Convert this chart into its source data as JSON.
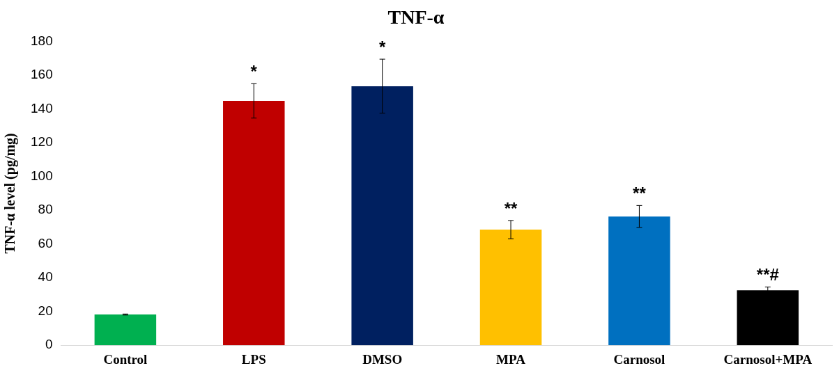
{
  "chart_data": {
    "type": "bar",
    "title": "TNF-α",
    "ylabel": "TNF-α level (pg/mg)",
    "categories": [
      "Control",
      "LPS",
      "DMSO",
      "MPA",
      "Carnosol",
      "Carnosol+MPA"
    ],
    "values": [
      18.2,
      144.8,
      153.5,
      68.5,
      76.3,
      32.5
    ],
    "colors": [
      "#00b050",
      "#c00000",
      "#002060",
      "#ffc000",
      "#0070c0",
      "#000000"
    ],
    "errors": [
      0.3,
      10.2,
      16,
      5.4,
      6.5,
      2
    ],
    "ylim": [
      0,
      180
    ],
    "yticks": [
      0,
      20,
      40,
      60,
      80,
      100,
      120,
      140,
      160,
      180
    ],
    "grid": false,
    "annotations": [
      {
        "text": "*",
        "x": "LPS",
        "y": 155
      },
      {
        "text": "*",
        "x": "DMSO",
        "y": 169.5
      },
      {
        "text": "**",
        "x": "MPA",
        "y": 73.9
      },
      {
        "text": "**",
        "x": "Carnosol",
        "y": 82.8
      },
      {
        "text": "**#",
        "x": "Carnosol+MPA",
        "y": 34.5
      }
    ]
  }
}
